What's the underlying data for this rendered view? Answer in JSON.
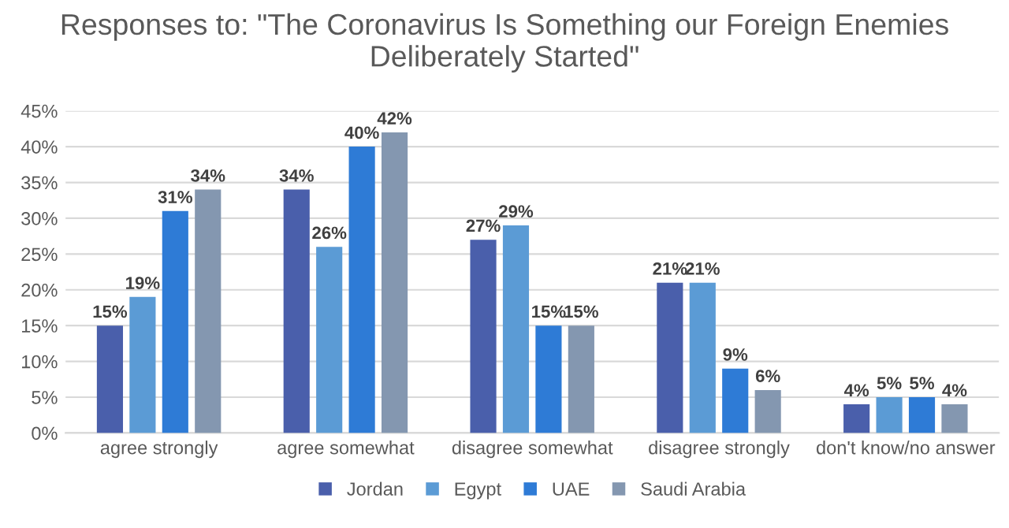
{
  "chart_data": {
    "type": "bar",
    "title": "Responses to: \"The Coronavirus Is Something our Foreign Enemies Deliberately Started\"",
    "categories": [
      "agree strongly",
      "agree somewhat",
      "disagree somewhat",
      "disagree strongly",
      "don't know/no answer"
    ],
    "series": [
      {
        "name": "Jordan",
        "color": "#4a5fab",
        "values": [
          15,
          34,
          27,
          21,
          4
        ],
        "value_labels": [
          "15%",
          "34%",
          "27%",
          "21%",
          "4%"
        ]
      },
      {
        "name": "Egypt",
        "color": "#5b9bd5",
        "values": [
          19,
          26,
          29,
          21,
          5
        ],
        "value_labels": [
          "19%",
          "26%",
          "29%",
          "21%",
          "5%"
        ]
      },
      {
        "name": "UAE",
        "color": "#2e7bd6",
        "values": [
          31,
          40,
          15,
          9,
          5
        ],
        "value_labels": [
          "31%",
          "40%",
          "15%",
          "9%",
          "5%"
        ]
      },
      {
        "name": "Saudi Arabia",
        "color": "#8497b0",
        "values": [
          34,
          42,
          15,
          6,
          4
        ],
        "value_labels": [
          "34%",
          "42%",
          "15%",
          "6%",
          "4%"
        ]
      }
    ],
    "ylim": [
      0,
      45
    ],
    "yticks": [
      {
        "value": 0,
        "label": "0%"
      },
      {
        "value": 5,
        "label": "5%"
      },
      {
        "value": 10,
        "label": "10%"
      },
      {
        "value": 15,
        "label": "15%"
      },
      {
        "value": 20,
        "label": "20%"
      },
      {
        "value": 25,
        "label": "25%"
      },
      {
        "value": 30,
        "label": "30%"
      },
      {
        "value": 35,
        "label": "35%"
      },
      {
        "value": 40,
        "label": "40%"
      },
      {
        "value": 45,
        "label": "45%"
      }
    ],
    "grid": "y",
    "legend": "bottom"
  }
}
